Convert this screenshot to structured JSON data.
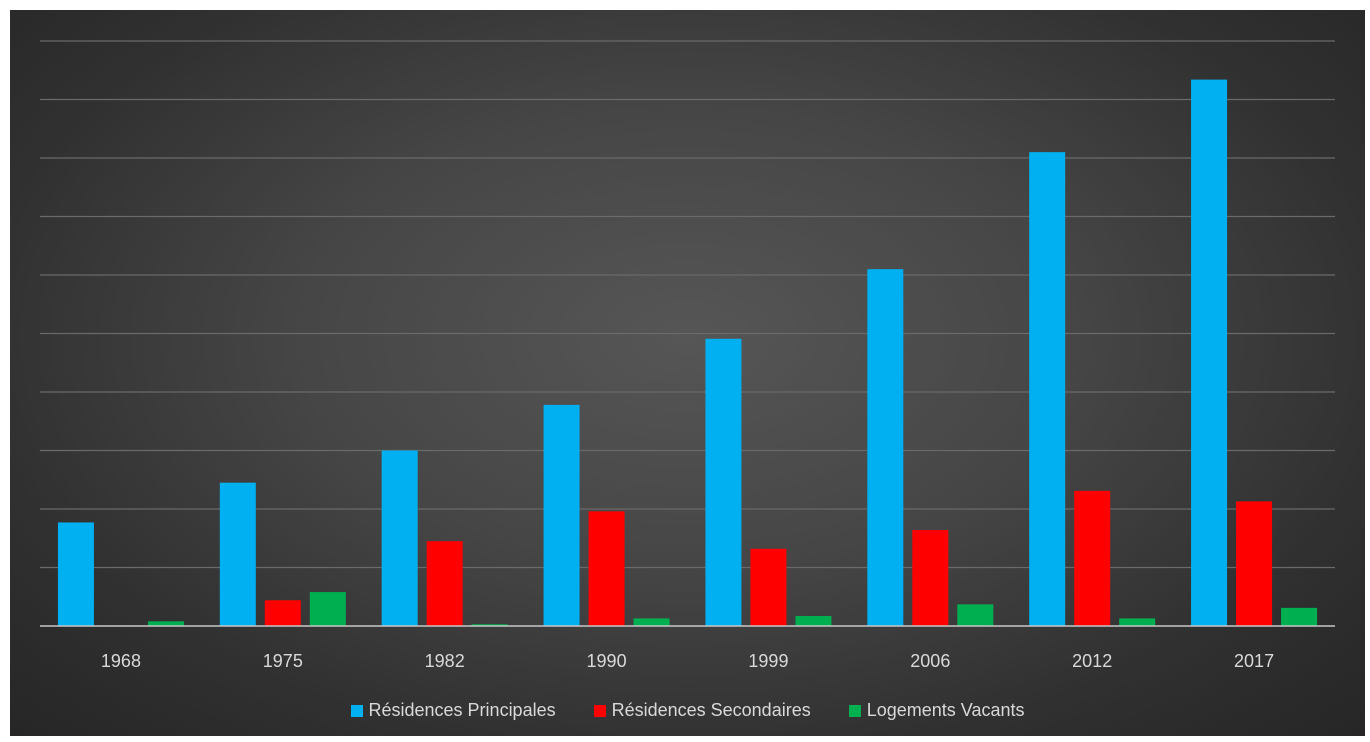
{
  "chart_data": {
    "type": "bar",
    "title": "",
    "xlabel": "",
    "ylabel": "",
    "categories": [
      "1968",
      "1975",
      "1982",
      "1990",
      "1999",
      "2006",
      "2012",
      "2017"
    ],
    "ylim": [
      0,
      100
    ],
    "y_axis_labels_visible": false,
    "grid": true,
    "legend_position": "bottom",
    "series": [
      {
        "name": "Résidences Principales",
        "color": "#00B0F0",
        "values": [
          17.7,
          24.5,
          30.0,
          37.8,
          49.1,
          61.0,
          81.0,
          93.4
        ]
      },
      {
        "name": "Résidences Secondaires",
        "color": "#FF0000",
        "values": [
          0,
          4.4,
          14.5,
          19.6,
          13.2,
          16.4,
          23.1,
          21.3
        ]
      },
      {
        "name": "Logements Vacants",
        "color": "#00B050",
        "values": [
          0.8,
          5.8,
          0.3,
          1.3,
          1.7,
          3.7,
          1.3,
          3.1
        ]
      }
    ]
  }
}
